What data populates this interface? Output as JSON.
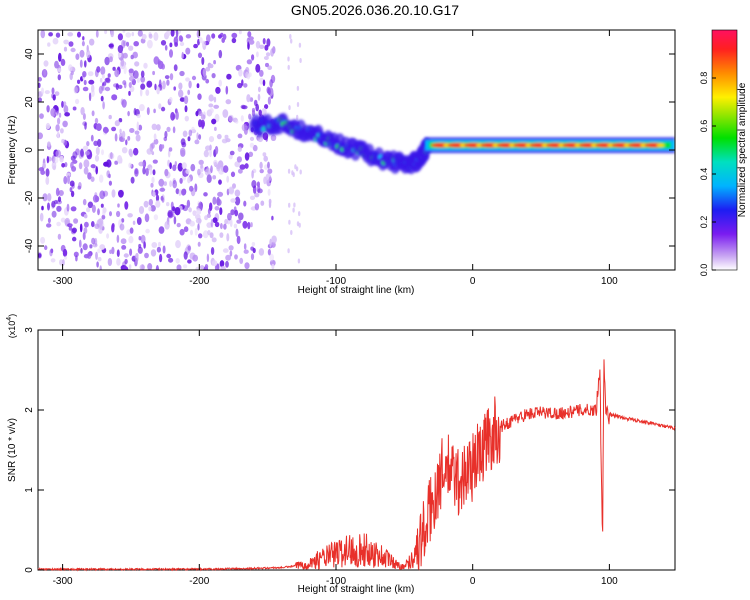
{
  "title": "GN05.2026.036.20.10.G17",
  "colors": {
    "snr_line": "#e8302a",
    "spectro_base": "#6a1be6"
  },
  "chart_data": [
    {
      "type": "heatmap",
      "title": "GN05.2026.036.20.10.G17",
      "xlabel": "Height of straight line (km)",
      "ylabel": "Frequency (Hz)",
      "xlim": [
        -318,
        148
      ],
      "ylim": [
        -50,
        50
      ],
      "xticks": [
        -300,
        -200,
        -100,
        0,
        100
      ],
      "xtick_labels": [
        "-300",
        "-200",
        "-100",
        "0",
        "100"
      ],
      "yticks": [
        -40,
        -20,
        0,
        20,
        40
      ],
      "ytick_labels": [
        "-40",
        "-20",
        "0",
        "20",
        "40"
      ],
      "colorbar": {
        "label": "Normalized spectral amplitude",
        "range": [
          0,
          1
        ],
        "ticks": [
          0,
          0.2,
          0.4,
          0.6,
          0.8
        ],
        "tick_labels": [
          "0.0",
          "0.2",
          "0.4",
          "0.6",
          "0.8"
        ],
        "colormap": "rainbow"
      },
      "features": [
        {
          "region": "noise",
          "x_range": [
            -318,
            -145
          ],
          "y_range": [
            -50,
            50
          ],
          "amplitude": 0.1
        },
        {
          "region": "descending_signal",
          "points": [
            [
              -160,
              10
            ],
            [
              -140,
              11
            ],
            [
              -120,
              7
            ],
            [
              -100,
              3
            ],
            [
              -80,
              -1
            ],
            [
              -60,
              -5
            ],
            [
              -45,
              -6
            ],
            [
              -38,
              -3
            ],
            [
              -33,
              2
            ]
          ],
          "amplitude": 0.4
        },
        {
          "region": "carrier",
          "x_range": [
            -35,
            148
          ],
          "y": 2,
          "amplitude": 0.95
        }
      ]
    },
    {
      "type": "line",
      "xlabel": "Height of straight line (km)",
      "ylabel": "SNR (10 * v/v)",
      "y_multiplier": "(x10^4)",
      "xlim": [
        -318,
        148
      ],
      "ylim": [
        0,
        3
      ],
      "xticks": [
        -300,
        -200,
        -100,
        0,
        100
      ],
      "xtick_labels": [
        "-300",
        "-200",
        "-100",
        "0",
        "100"
      ],
      "yticks": [
        0,
        1,
        2,
        3
      ],
      "ytick_labels": [
        "0",
        "1",
        "2",
        "3"
      ],
      "series": [
        {
          "x": [
            -318,
            -250,
            -200,
            -160,
            -140,
            -130,
            -120,
            -110,
            -100,
            -90,
            -80,
            -70,
            -60,
            -55,
            -50,
            -45,
            -40,
            -35,
            -30,
            -25,
            -20,
            -15,
            -10,
            -5,
            0,
            5,
            10,
            15,
            20,
            30,
            40,
            50,
            60,
            70,
            80,
            90,
            93,
            95,
            96,
            97,
            98,
            100,
            110,
            120,
            130,
            140,
            148
          ],
          "y": [
            0.01,
            0.01,
            0.01,
            0.02,
            0.03,
            0.05,
            0.08,
            0.15,
            0.2,
            0.25,
            0.25,
            0.2,
            0.12,
            0.06,
            0.05,
            0.12,
            0.3,
            0.5,
            0.8,
            1.1,
            1.3,
            1.2,
            1.1,
            1.2,
            1.3,
            1.45,
            1.6,
            1.7,
            1.78,
            1.88,
            1.95,
            1.97,
            1.96,
            1.97,
            2.0,
            2.0,
            2.5,
            0.4,
            2.8,
            2.1,
            1.95,
            1.95,
            1.9,
            1.87,
            1.84,
            1.8,
            1.77
          ]
        }
      ]
    }
  ]
}
